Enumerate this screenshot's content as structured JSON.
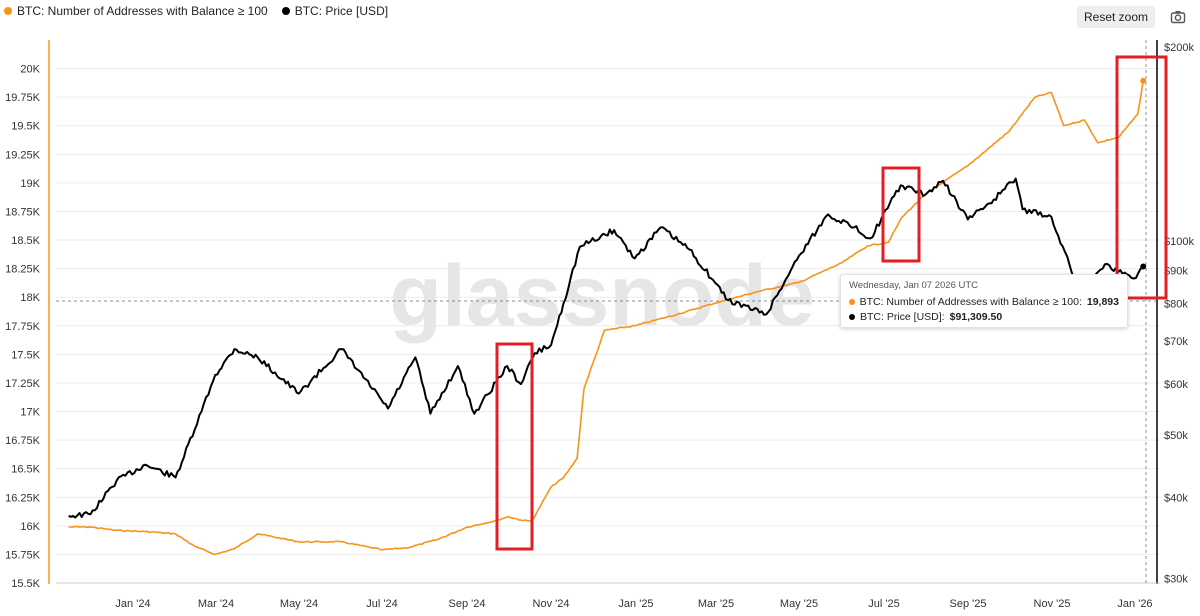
{
  "legend": [
    {
      "label": "BTC: Number of Addresses with Balance ≥ 100",
      "color": "#f7931a"
    },
    {
      "label": "BTC: Price [USD]",
      "color": "#000000"
    }
  ],
  "toolbar": {
    "reset_zoom_label": "Reset zoom",
    "camera_icon": "camera-icon"
  },
  "watermark": "glassnode",
  "tooltip": {
    "date": "Wednesday, Jan 07 2026 UTC",
    "series1_label": "BTC: Number of Addresses with Balance ≥ 100:",
    "series1_value": "19,893",
    "series2_label": "BTC: Price [USD]:",
    "series2_value": "$91,309.50"
  },
  "colors": {
    "addresses": "#f7931a",
    "price": "#000000",
    "highlight": "#e31e24",
    "grid": "#ececec"
  },
  "chart_data": {
    "type": "line",
    "x_tick_labels": [
      "Jan '24",
      "Mar '24",
      "May '24",
      "Jul '24",
      "Sep '24",
      "Nov '24",
      "Jan '25",
      "Mar '25",
      "May '25",
      "Jul '25",
      "Sep '25",
      "Nov '25",
      "Jan '26"
    ],
    "y_left_tick_labels": [
      "15.5K",
      "15.75K",
      "16K",
      "16.25K",
      "16.5K",
      "16.75K",
      "17K",
      "17.25K",
      "17.5K",
      "17.75K",
      "18K",
      "18.25K",
      "18.5K",
      "18.75K",
      "19K",
      "19.25K",
      "19.5K",
      "19.75K",
      "20K"
    ],
    "y_left_range": [
      15500,
      20250
    ],
    "y_right_tick_labels": [
      "$30k",
      "$40k",
      "$50k",
      "$60k",
      "$70k",
      "$80k",
      "$90k",
      "$100k",
      "$200k"
    ],
    "y_right_tick_values": [
      30000,
      40000,
      50000,
      60000,
      70000,
      80000,
      90000,
      100000,
      200000
    ],
    "y_right_scale": "log",
    "series": [
      {
        "name": "BTC: Number of Addresses with Balance ≥ 100",
        "axis": "left",
        "x": [
          "2023-11-15",
          "2023-12-01",
          "2023-12-20",
          "2024-01-10",
          "2024-02-01",
          "2024-02-15",
          "2024-03-01",
          "2024-03-15",
          "2024-04-01",
          "2024-05-01",
          "2024-06-01",
          "2024-07-01",
          "2024-07-20",
          "2024-08-10",
          "2024-09-01",
          "2024-09-20",
          "2024-10-01",
          "2024-10-10",
          "2024-10-18",
          "2024-11-01",
          "2024-11-10",
          "2024-11-20",
          "2024-11-25",
          "2024-12-10",
          "2025-01-01",
          "2025-02-01",
          "2025-03-01",
          "2025-04-01",
          "2025-05-01",
          "2025-06-01",
          "2025-06-20",
          "2025-07-05",
          "2025-07-15",
          "2025-08-01",
          "2025-09-01",
          "2025-10-01",
          "2025-10-20",
          "2025-11-01",
          "2025-11-10",
          "2025-11-25",
          "2025-12-05",
          "2025-12-20",
          "2026-01-03",
          "2026-01-07"
        ],
        "values": [
          15990,
          15990,
          15960,
          15950,
          15930,
          15820,
          15750,
          15800,
          15930,
          15860,
          15860,
          15790,
          15810,
          15880,
          15990,
          16040,
          16080,
          16050,
          16040,
          16340,
          16420,
          16590,
          17200,
          17710,
          17750,
          17850,
          17950,
          18050,
          18130,
          18300,
          18450,
          18480,
          18700,
          18900,
          19150,
          19450,
          19750,
          19790,
          19500,
          19550,
          19350,
          19400,
          19600,
          19893
        ]
      },
      {
        "name": "BTC: Price [USD]",
        "axis": "right",
        "x": [
          "2023-11-15",
          "2023-12-01",
          "2023-12-20",
          "2024-01-10",
          "2024-02-01",
          "2024-02-15",
          "2024-03-01",
          "2024-03-15",
          "2024-04-01",
          "2024-05-01",
          "2024-06-01",
          "2024-07-05",
          "2024-07-25",
          "2024-08-05",
          "2024-08-25",
          "2024-09-06",
          "2024-09-30",
          "2024-10-10",
          "2024-10-20",
          "2024-11-01",
          "2024-11-10",
          "2024-11-22",
          "2024-12-17",
          "2025-01-01",
          "2025-01-20",
          "2025-02-10",
          "2025-03-01",
          "2025-03-10",
          "2025-04-07",
          "2025-05-01",
          "2025-05-22",
          "2025-06-10",
          "2025-06-22",
          "2025-07-14",
          "2025-08-01",
          "2025-08-14",
          "2025-09-01",
          "2025-09-20",
          "2025-10-06",
          "2025-10-11",
          "2025-11-01",
          "2025-11-21",
          "2025-12-10",
          "2025-12-31",
          "2026-01-07"
        ],
        "values": [
          37500,
          37700,
          42500,
          45000,
          43000,
          51000,
          62000,
          68000,
          66000,
          58000,
          68000,
          55000,
          66000,
          54000,
          64000,
          54000,
          64000,
          60000,
          67000,
          69000,
          80000,
          98000,
          104000,
          94000,
          105000,
          97000,
          86000,
          81000,
          77000,
          95000,
          110000,
          105000,
          101000,
          122000,
          118000,
          124000,
          108000,
          116000,
          125000,
          112000,
          109000,
          84000,
          92000,
          87500,
          91309.5
        ]
      }
    ],
    "annotations": [
      {
        "type": "rectangle",
        "period": "2024-10"
      },
      {
        "type": "rectangle",
        "period": "2025-07"
      },
      {
        "type": "rectangle",
        "period": "2026-01"
      }
    ]
  }
}
